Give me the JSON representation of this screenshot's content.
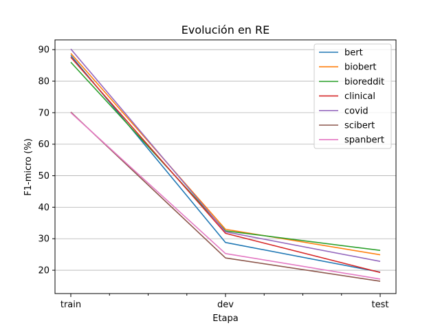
{
  "chart_data": {
    "type": "line",
    "title": "Evolución en RE",
    "xlabel": "Etapa",
    "ylabel": "F1-micro (%)",
    "categories": [
      "train",
      "dev",
      "test"
    ],
    "ylim": [
      12.6,
      93.1
    ],
    "yticks": [
      20,
      30,
      40,
      50,
      60,
      70,
      80,
      90
    ],
    "grid": "horizontal",
    "legend_position": "top-right",
    "series": [
      {
        "name": "bert",
        "color": "#1f77b4",
        "values": [
          88.2,
          28.8,
          19.4
        ]
      },
      {
        "name": "biobert",
        "color": "#ff7f0e",
        "values": [
          88.8,
          33.0,
          24.9
        ]
      },
      {
        "name": "bioreddit",
        "color": "#2ca02c",
        "values": [
          86.0,
          32.5,
          26.3
        ]
      },
      {
        "name": "clinical",
        "color": "#d62728",
        "values": [
          87.6,
          31.7,
          19.3
        ]
      },
      {
        "name": "covid",
        "color": "#9467bd",
        "values": [
          90.2,
          32.2,
          22.8
        ]
      },
      {
        "name": "scibert",
        "color": "#8c564b",
        "values": [
          70.2,
          23.9,
          16.5
        ]
      },
      {
        "name": "spanbert",
        "color": "#e377c2",
        "values": [
          70.0,
          25.3,
          17.2
        ]
      }
    ]
  }
}
